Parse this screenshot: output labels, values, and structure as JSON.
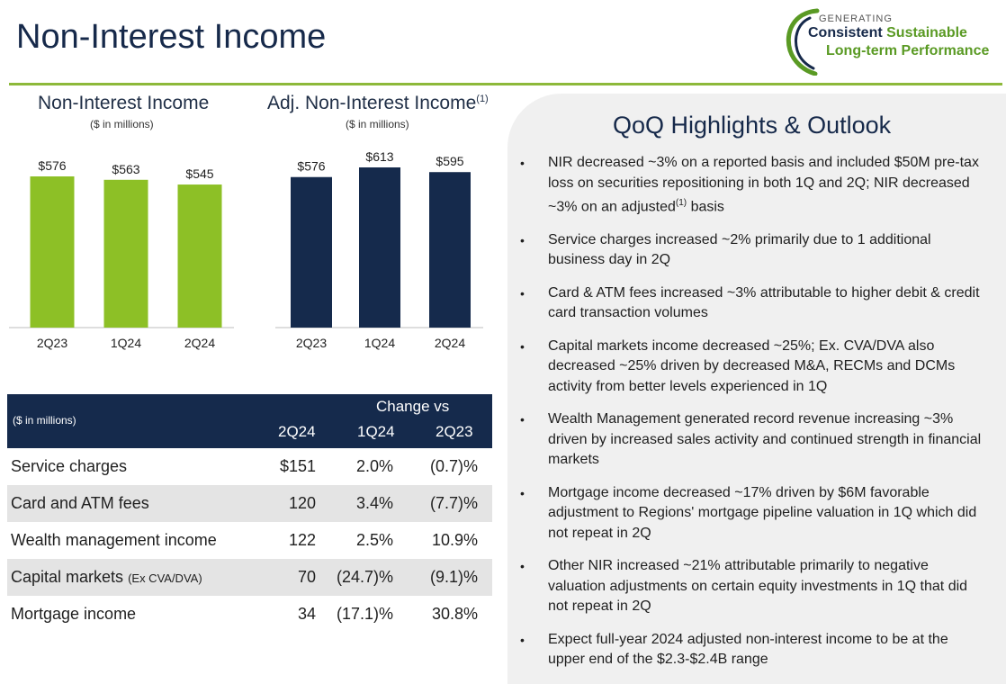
{
  "page": {
    "title": "Non-Interest Income"
  },
  "logo": {
    "line0": "GENERATING",
    "line1_a": "Consistent",
    "line1_b": "Sustainable",
    "line2": "Long-term Performance",
    "colors": {
      "navy": "#16294a",
      "green": "#5a9a24"
    }
  },
  "chart_data": [
    {
      "type": "bar",
      "title": "Non-Interest Income",
      "subtitle": "($ in millions)",
      "categories": [
        "2Q23",
        "1Q24",
        "2Q24"
      ],
      "values": [
        576,
        563,
        545
      ],
      "data_labels": [
        "$576",
        "$563",
        "$545"
      ],
      "color": "#8dc026",
      "ylim": [
        0,
        576
      ],
      "grid": false
    },
    {
      "type": "bar",
      "title": "Adj. Non-Interest Income",
      "title_sup": "(1)",
      "subtitle": "($ in millions)",
      "categories": [
        "2Q23",
        "1Q24",
        "2Q24"
      ],
      "values": [
        576,
        613,
        595
      ],
      "data_labels": [
        "$576",
        "$613",
        "$595"
      ],
      "color": "#152a4c",
      "ylim": [
        0,
        613
      ],
      "grid": false
    }
  ],
  "table": {
    "unit": "($ in millions)",
    "change_vs": "Change vs",
    "columns": [
      "2Q24",
      "1Q24",
      "2Q23"
    ],
    "rows": [
      {
        "label": "Service charges",
        "note": "",
        "v2q24": "$151",
        "v1q24": "2.0%",
        "v2q23": "(0.7)%"
      },
      {
        "label": "Card and ATM fees",
        "note": "",
        "v2q24": "120",
        "v1q24": "3.4%",
        "v2q23": "(7.7)%"
      },
      {
        "label": "Wealth management income",
        "note": "",
        "v2q24": "122",
        "v1q24": "2.5%",
        "v2q23": "10.9%"
      },
      {
        "label": "Capital markets",
        "note": "(Ex CVA/DVA)",
        "v2q24": "70",
        "v1q24": "(24.7)%",
        "v2q23": "(9.1)%"
      },
      {
        "label": "Mortgage income",
        "note": "",
        "v2q24": "34",
        "v1q24": "(17.1)%",
        "v2q23": "30.8%"
      }
    ]
  },
  "highlights": {
    "title": "QoQ Highlights & Outlook",
    "bullet_char": "•",
    "b0_pre": "NIR decreased ~3% on a reported basis and included $50M pre-tax loss on securities repositioning in both 1Q and 2Q; NIR decreased ~3% on an adjusted",
    "b0_sup": "(1)",
    "b0_post": " basis",
    "items": [
      "Service charges increased ~2% primarily due to 1 additional business day in 2Q",
      "Card & ATM fees increased ~3% attributable to higher debit & credit card transaction volumes",
      "Capital markets income decreased ~25%; Ex. CVA/DVA also decreased ~25% driven by decreased M&A, RECMs and DCMs activity from better levels experienced in 1Q",
      "Wealth Management generated record revenue increasing ~3% driven by increased sales activity and continued strength in financial markets",
      "Mortgage income decreased ~17% driven by $6M favorable adjustment to Regions' mortgage pipeline valuation in 1Q which did not repeat in 2Q",
      "Other NIR increased ~21% attributable primarily to negative valuation adjustments on certain equity investments in 1Q that did not repeat in 2Q",
      "Expect full-year 2024 adjusted non-interest income to be at the upper end of the $2.3-$2.4B range"
    ]
  }
}
